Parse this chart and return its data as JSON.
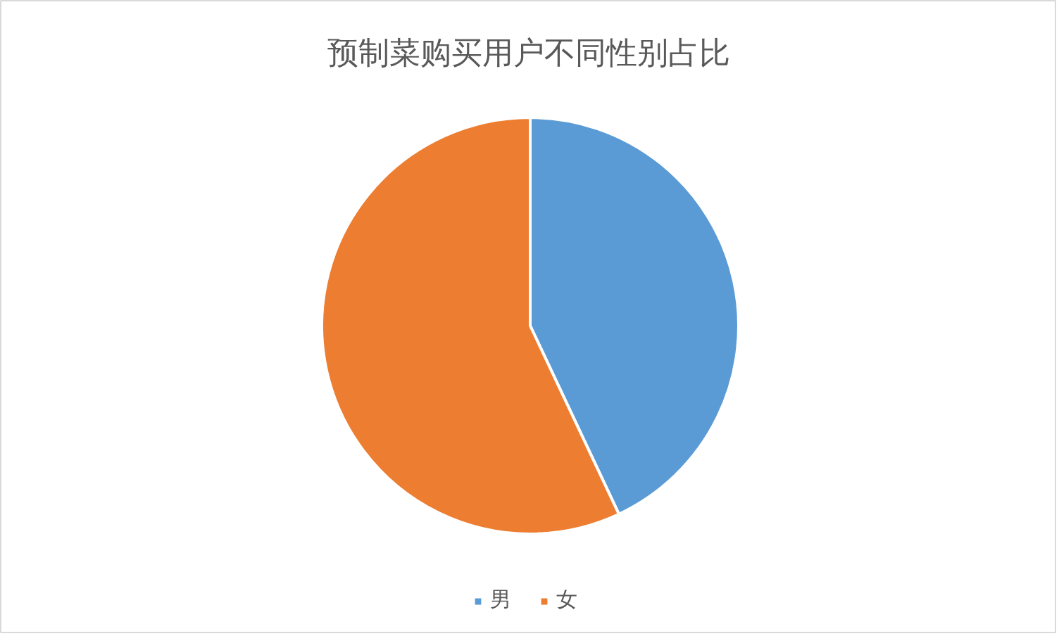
{
  "chart_data": {
    "type": "pie",
    "title": "预制菜购买用户不同性别占比",
    "categories": [
      "男",
      "女"
    ],
    "values": [
      43,
      57
    ],
    "colors": [
      "#5b9bd5",
      "#ed7d31"
    ],
    "legend": "bottom"
  }
}
